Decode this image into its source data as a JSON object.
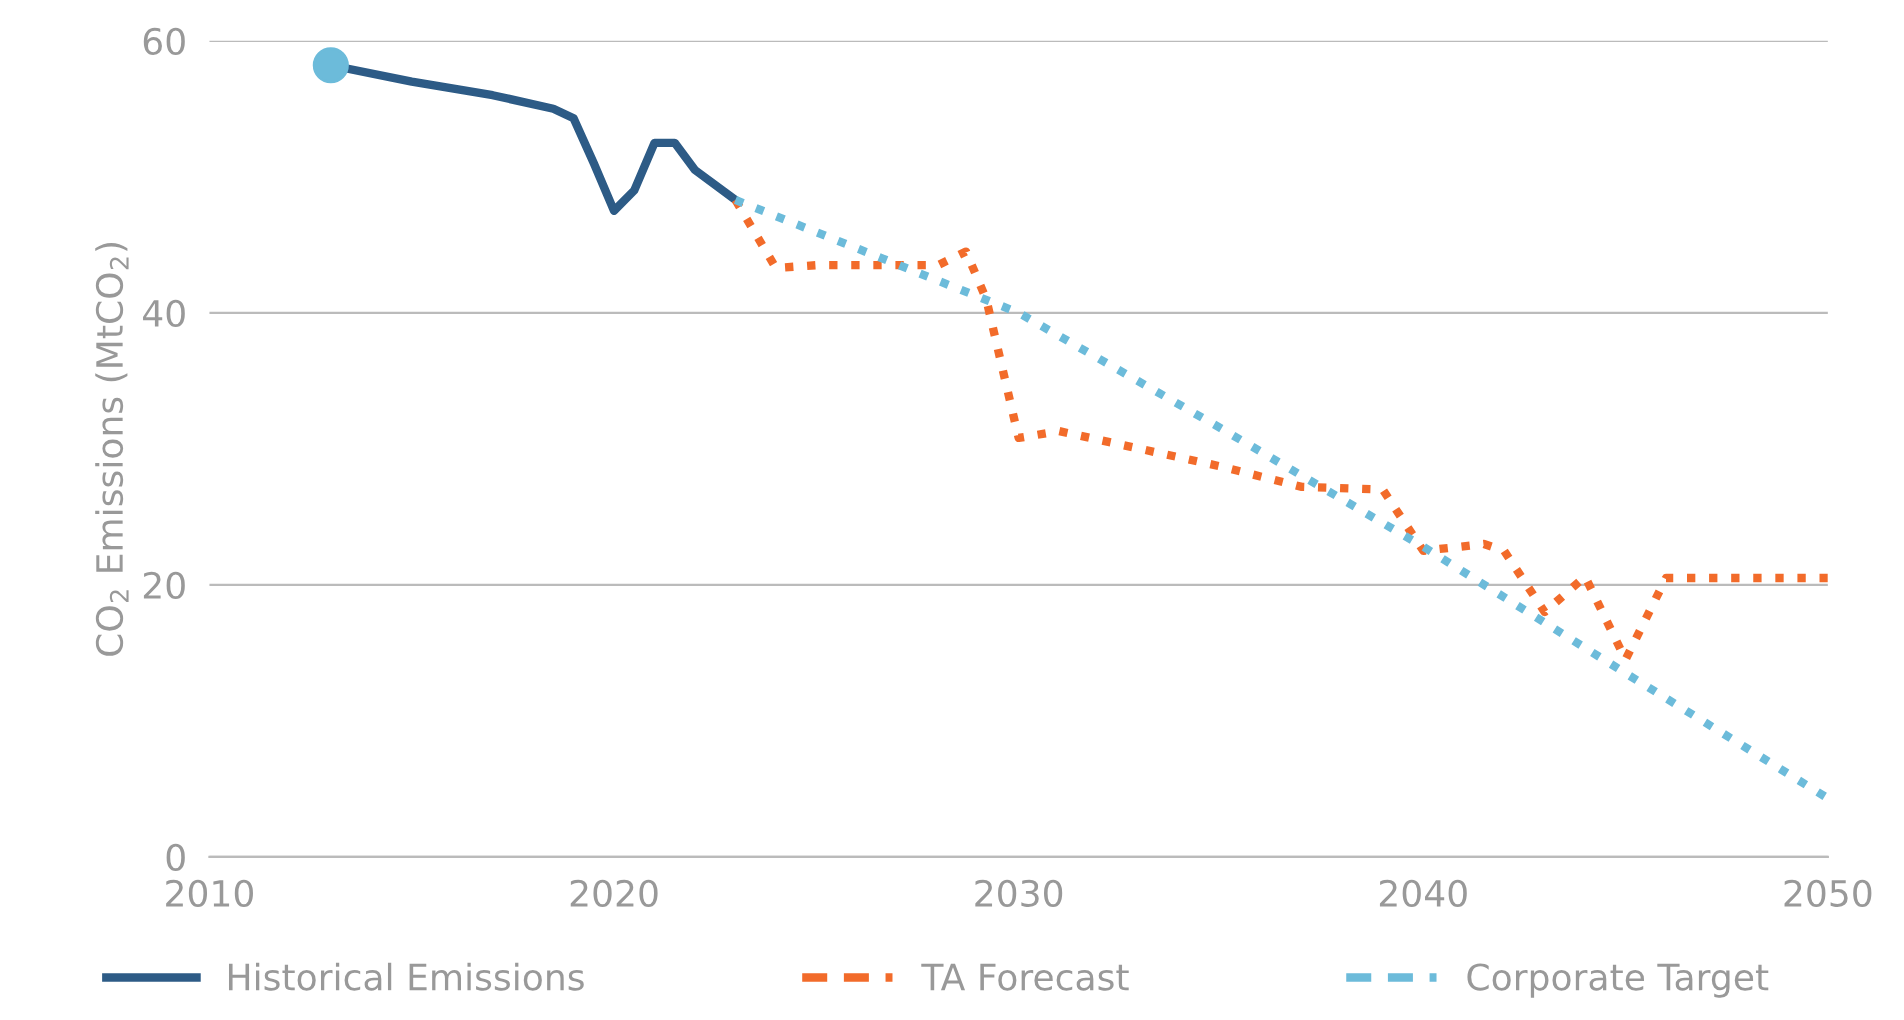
{
  "chart_data": {
    "type": "line",
    "ylabel": "CO$_{2}$ Emissions (MtCO$_{2}$)",
    "xlim": [
      2010,
      2050
    ],
    "xticks": [
      2010,
      2020,
      2030,
      2040,
      2050
    ],
    "ylim": [
      0,
      60
    ],
    "yticks": [
      0,
      20,
      40,
      60
    ],
    "grid": "y",
    "legend": "bottom",
    "series": [
      {
        "name": "Historical Emissions",
        "color": "#2d5b86",
        "line_style": "solid",
        "x": [
          2013,
          2015,
          2017,
          2018.5,
          2019,
          2019.5,
          2020,
          2020.5,
          2021,
          2021.5,
          2022,
          2023
        ],
        "values": [
          58.2,
          57,
          56,
          55,
          54.3,
          51,
          47.5,
          49,
          52.5,
          52.5,
          50.5,
          48.3
        ]
      },
      {
        "name": "TA Forecast",
        "color": "#f26b2a",
        "line_style": "dotted",
        "x": [
          2023,
          2024,
          2025,
          2028,
          2028.7,
          2029.2,
          2030,
          2031,
          2035,
          2037,
          2039,
          2040,
          2041.5,
          2042,
          2043,
          2044,
          2045,
          2046,
          2047,
          2050
        ],
        "values": [
          48.3,
          43.3,
          43.5,
          43.5,
          44.5,
          41,
          30.8,
          31.3,
          28.7,
          27.2,
          27,
          22.5,
          23,
          22.5,
          18,
          20.6,
          14.5,
          20.5,
          20.5,
          20.5
        ]
      },
      {
        "name": "Corporate Target",
        "color": "#6cbbda",
        "line_style": "dotted",
        "x": [
          2023,
          2030,
          2035,
          2040,
          2045,
          2050
        ],
        "values": [
          48.3,
          40,
          31.5,
          22.8,
          13.5,
          4.3
        ]
      },
      {
        "type": "scatter",
        "color": "#6cbbda",
        "marker": "circle",
        "x": [
          2013
        ],
        "values": [
          58.2
        ]
      }
    ]
  }
}
